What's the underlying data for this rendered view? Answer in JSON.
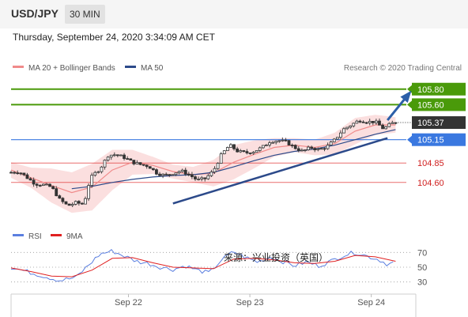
{
  "header": {
    "symbol": "USD/JPY",
    "timeframe": "30 MIN",
    "timestamp": "Thursday, September 24, 2020 3:34:09 AM CET"
  },
  "main_chart": {
    "legend": [
      {
        "label": "MA 20 + Bollinger Bands",
        "color": "#f08a8a"
      },
      {
        "label": "MA 50",
        "color": "#2c4a8a"
      }
    ],
    "credit": "Research © 2020 Trading Central",
    "current_price": 105.37,
    "current_price_label": "105.37",
    "ylim": [
      104.1,
      105.95
    ],
    "levels": [
      {
        "value": 105.8,
        "label": "105.80",
        "kind": "resistance",
        "color": "#4a9a0a"
      },
      {
        "value": 105.6,
        "label": "105.60",
        "kind": "resistance",
        "color": "#4a9a0a"
      },
      {
        "value": 105.15,
        "label": "105.15",
        "kind": "pivot",
        "color": "#3a78e0"
      },
      {
        "value": 104.85,
        "label": "104.85",
        "kind": "support",
        "color": "#e03030"
      },
      {
        "value": 104.6,
        "label": "104.60",
        "kind": "support",
        "color": "#e03030"
      }
    ],
    "trendline": {
      "from": {
        "t": 0.4,
        "price": 104.33
      },
      "to": {
        "t": 0.93,
        "price": 105.17
      }
    },
    "arrow": {
      "from": {
        "t": 0.93,
        "price": 105.4
      },
      "to": {
        "t": 1.0,
        "price": 105.75
      }
    }
  },
  "rsi_chart": {
    "legend": [
      {
        "label": "RSI",
        "color": "#5b7fe0"
      },
      {
        "label": "9MA",
        "color": "#e02020"
      }
    ],
    "levels": [
      70,
      50,
      30
    ],
    "level_labels": [
      "70",
      "50",
      "30"
    ],
    "ylim": [
      20,
      80
    ],
    "watermark": "来源：兴业投资（英国）"
  },
  "x_axis": {
    "ticks": [
      {
        "t": 0.29,
        "label": "Sep 22"
      },
      {
        "t": 0.59,
        "label": "Sep 23"
      },
      {
        "t": 0.89,
        "label": "Sep 24"
      }
    ]
  },
  "chart_data": {
    "type": "candlestick",
    "title": "USD/JPY 30 MIN",
    "ylim": [
      104.1,
      105.95
    ],
    "price_path": [
      [
        0.0,
        104.73
      ],
      [
        0.02,
        104.74
      ],
      [
        0.04,
        104.66
      ],
      [
        0.06,
        104.58
      ],
      [
        0.08,
        104.57
      ],
      [
        0.1,
        104.54
      ],
      [
        0.12,
        104.38
      ],
      [
        0.14,
        104.3
      ],
      [
        0.16,
        104.34
      ],
      [
        0.18,
        104.32
      ],
      [
        0.19,
        104.55
      ],
      [
        0.2,
        104.68
      ],
      [
        0.22,
        104.78
      ],
      [
        0.24,
        104.95
      ],
      [
        0.26,
        104.96
      ],
      [
        0.28,
        104.92
      ],
      [
        0.3,
        104.86
      ],
      [
        0.32,
        104.83
      ],
      [
        0.34,
        104.81
      ],
      [
        0.36,
        104.72
      ],
      [
        0.38,
        104.69
      ],
      [
        0.4,
        104.72
      ],
      [
        0.42,
        104.75
      ],
      [
        0.44,
        104.7
      ],
      [
        0.46,
        104.63
      ],
      [
        0.48,
        104.65
      ],
      [
        0.5,
        104.75
      ],
      [
        0.52,
        104.96
      ],
      [
        0.54,
        105.08
      ],
      [
        0.56,
        105.0
      ],
      [
        0.58,
        104.98
      ],
      [
        0.6,
        105.0
      ],
      [
        0.62,
        105.05
      ],
      [
        0.64,
        105.13
      ],
      [
        0.66,
        105.14
      ],
      [
        0.68,
        105.12
      ],
      [
        0.7,
        105.05
      ],
      [
        0.72,
        105.0
      ],
      [
        0.74,
        105.05
      ],
      [
        0.76,
        105.02
      ],
      [
        0.78,
        105.06
      ],
      [
        0.8,
        105.15
      ],
      [
        0.82,
        105.28
      ],
      [
        0.84,
        105.34
      ],
      [
        0.86,
        105.4
      ],
      [
        0.88,
        105.38
      ],
      [
        0.9,
        105.38
      ],
      [
        0.92,
        105.29
      ],
      [
        0.94,
        105.36
      ],
      [
        0.95,
        105.37
      ]
    ],
    "ma20": [
      [
        0.0,
        104.76
      ],
      [
        0.05,
        104.66
      ],
      [
        0.1,
        104.56
      ],
      [
        0.15,
        104.47
      ],
      [
        0.2,
        104.54
      ],
      [
        0.25,
        104.76
      ],
      [
        0.3,
        104.86
      ],
      [
        0.35,
        104.82
      ],
      [
        0.4,
        104.74
      ],
      [
        0.45,
        104.7
      ],
      [
        0.5,
        104.72
      ],
      [
        0.55,
        104.86
      ],
      [
        0.6,
        104.96
      ],
      [
        0.65,
        105.05
      ],
      [
        0.7,
        105.08
      ],
      [
        0.75,
        105.05
      ],
      [
        0.8,
        105.1
      ],
      [
        0.85,
        105.26
      ],
      [
        0.9,
        105.34
      ],
      [
        0.95,
        105.34
      ]
    ],
    "ma50": [
      [
        0.15,
        104.52
      ],
      [
        0.2,
        104.55
      ],
      [
        0.25,
        104.6
      ],
      [
        0.3,
        104.64
      ],
      [
        0.35,
        104.67
      ],
      [
        0.4,
        104.69
      ],
      [
        0.45,
        104.7
      ],
      [
        0.5,
        104.73
      ],
      [
        0.55,
        104.8
      ],
      [
        0.6,
        104.88
      ],
      [
        0.65,
        104.95
      ],
      [
        0.7,
        105.0
      ],
      [
        0.75,
        105.03
      ],
      [
        0.8,
        105.08
      ],
      [
        0.85,
        105.15
      ],
      [
        0.9,
        105.22
      ],
      [
        0.95,
        105.28
      ]
    ],
    "bb_width": [
      [
        0.0,
        0.1
      ],
      [
        0.05,
        0.13
      ],
      [
        0.1,
        0.22
      ],
      [
        0.15,
        0.26
      ],
      [
        0.2,
        0.3
      ],
      [
        0.25,
        0.26
      ],
      [
        0.3,
        0.16
      ],
      [
        0.35,
        0.11
      ],
      [
        0.4,
        0.09
      ],
      [
        0.45,
        0.1
      ],
      [
        0.5,
        0.17
      ],
      [
        0.55,
        0.22
      ],
      [
        0.6,
        0.18
      ],
      [
        0.65,
        0.12
      ],
      [
        0.7,
        0.09
      ],
      [
        0.75,
        0.1
      ],
      [
        0.8,
        0.14
      ],
      [
        0.85,
        0.17
      ],
      [
        0.9,
        0.13
      ],
      [
        0.95,
        0.1
      ]
    ],
    "rsi": [
      [
        0.0,
        50
      ],
      [
        0.04,
        44
      ],
      [
        0.08,
        38
      ],
      [
        0.12,
        32
      ],
      [
        0.16,
        36
      ],
      [
        0.19,
        52
      ],
      [
        0.22,
        68
      ],
      [
        0.25,
        72
      ],
      [
        0.28,
        65
      ],
      [
        0.31,
        58
      ],
      [
        0.34,
        55
      ],
      [
        0.37,
        50
      ],
      [
        0.4,
        47
      ],
      [
        0.43,
        52
      ],
      [
        0.46,
        46
      ],
      [
        0.49,
        42
      ],
      [
        0.52,
        60
      ],
      [
        0.55,
        71
      ],
      [
        0.58,
        63
      ],
      [
        0.61,
        57
      ],
      [
        0.64,
        64
      ],
      [
        0.67,
        58
      ],
      [
        0.7,
        52
      ],
      [
        0.73,
        57
      ],
      [
        0.76,
        52
      ],
      [
        0.79,
        58
      ],
      [
        0.82,
        66
      ],
      [
        0.85,
        70
      ],
      [
        0.88,
        65
      ],
      [
        0.91,
        60
      ],
      [
        0.93,
        54
      ],
      [
        0.95,
        57
      ]
    ],
    "rsi_ma": [
      [
        0.0,
        49
      ],
      [
        0.05,
        44
      ],
      [
        0.1,
        38
      ],
      [
        0.15,
        37
      ],
      [
        0.2,
        46
      ],
      [
        0.25,
        62
      ],
      [
        0.3,
        63
      ],
      [
        0.35,
        56
      ],
      [
        0.4,
        50
      ],
      [
        0.45,
        49
      ],
      [
        0.5,
        48
      ],
      [
        0.55,
        61
      ],
      [
        0.6,
        62
      ],
      [
        0.65,
        60
      ],
      [
        0.7,
        56
      ],
      [
        0.75,
        55
      ],
      [
        0.8,
        58
      ],
      [
        0.85,
        66
      ],
      [
        0.9,
        64
      ],
      [
        0.95,
        58
      ]
    ]
  }
}
